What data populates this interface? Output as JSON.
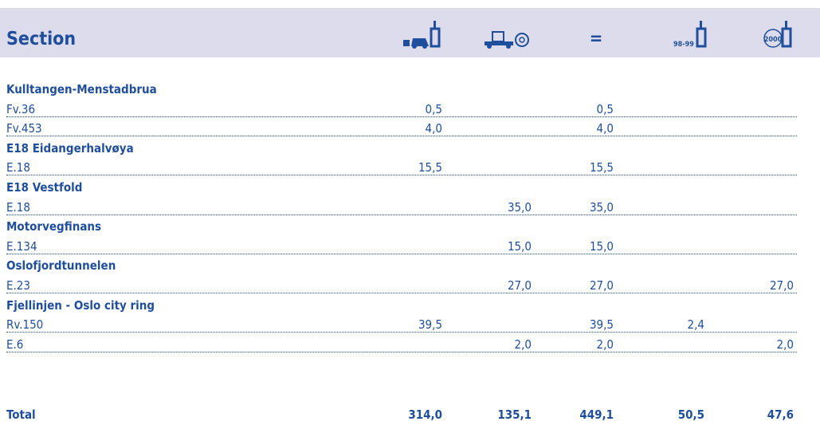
{
  "header": {
    "title": "Section",
    "symbols": {
      "equals": "=",
      "period": "98-99",
      "year": "2000"
    }
  },
  "table": {
    "groups": [
      {
        "name": "Kulltangen-Menstadbrua",
        "rows": [
          {
            "road": "Fv.36",
            "cells": [
              "0,5",
              null,
              "0,5",
              null,
              null
            ]
          },
          {
            "road": "Fv.453",
            "cells": [
              "4,0",
              null,
              "4,0",
              null,
              null
            ]
          }
        ]
      },
      {
        "name": "E18 Eidangerhalvøya",
        "rows": [
          {
            "road": "E.18",
            "cells": [
              "15,5",
              null,
              "15,5",
              null,
              null
            ]
          }
        ]
      },
      {
        "name": "E18 Vestfold",
        "rows": [
          {
            "road": "E.18",
            "cells": [
              null,
              "35,0",
              "35,0",
              null,
              null
            ]
          }
        ]
      },
      {
        "name": "Motorvegfinans",
        "rows": [
          {
            "road": "E.134",
            "cells": [
              null,
              "15,0",
              "15,0",
              null,
              null
            ]
          }
        ]
      },
      {
        "name": "Oslofjordtunnelen",
        "rows": [
          {
            "road": "E.23",
            "cells": [
              null,
              "27,0",
              "27,0",
              null,
              "27,0"
            ]
          }
        ]
      },
      {
        "name": "Fjellinjen - Oslo city ring",
        "rows": [
          {
            "road": "Rv.150",
            "cells": [
              "39,5",
              null,
              "39,5",
              "2,4",
              null
            ]
          },
          {
            "road": "E.6",
            "cells": [
              null,
              "2,0",
              "2,0",
              null,
              "2,0"
            ]
          }
        ]
      }
    ],
    "total": {
      "label": "Total",
      "cells": [
        "314,0",
        "135,1",
        "449,1",
        "50,5",
        "47,6"
      ]
    }
  }
}
